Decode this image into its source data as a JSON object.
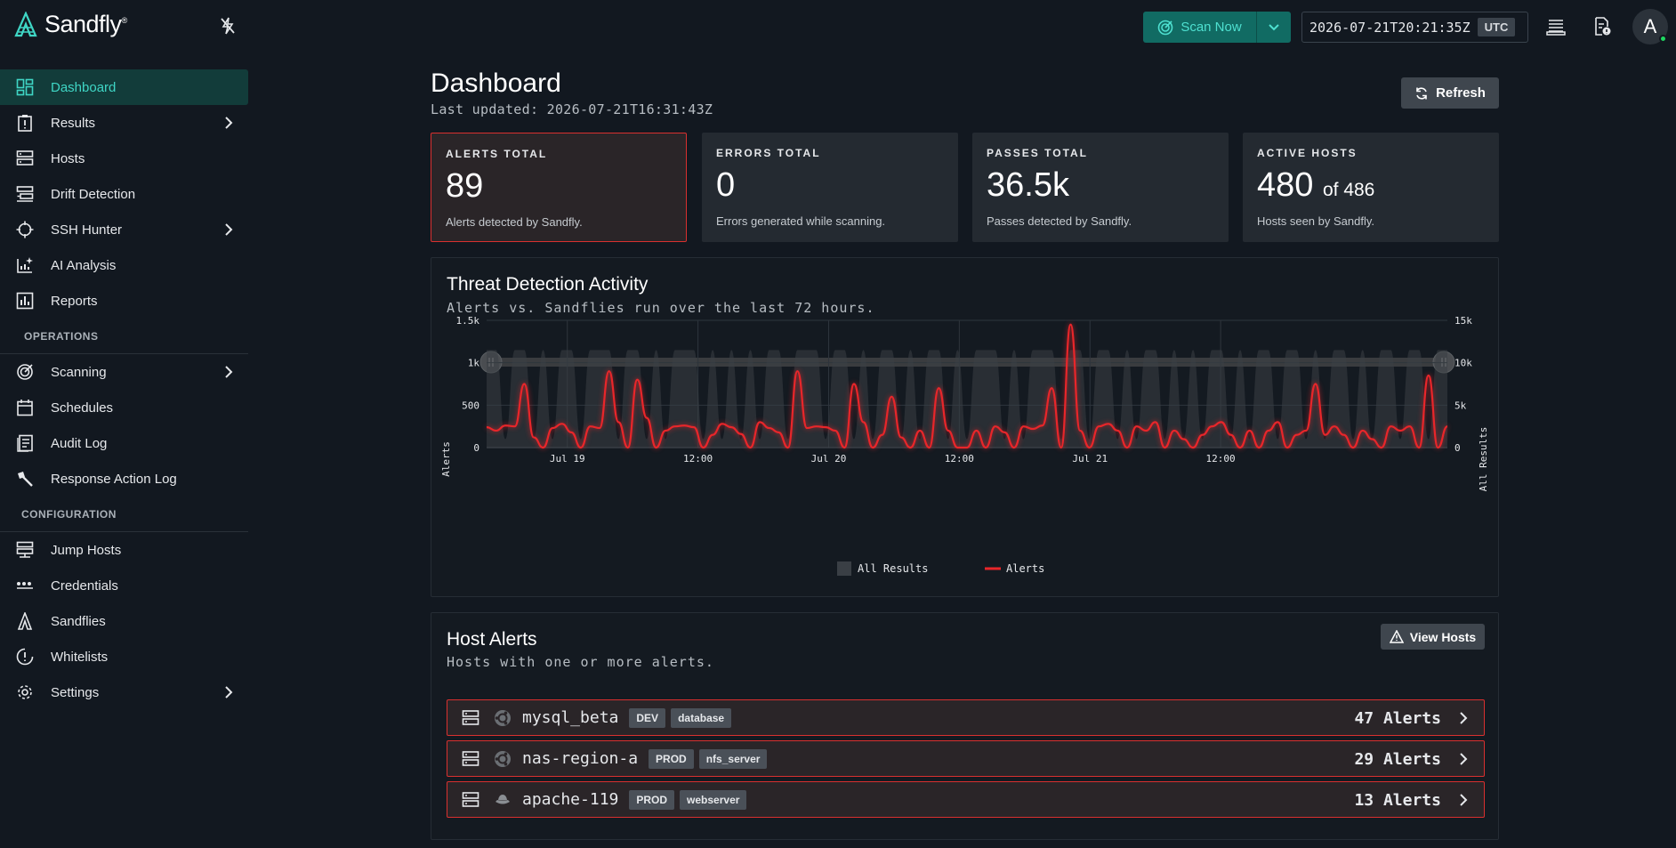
{
  "app": {
    "logo_text": "Sandfly",
    "logo_mark": "®"
  },
  "topbar": {
    "scan_label": "Scan Now",
    "timestamp": "2026-07-21T20:21:35Z",
    "timezone": "UTC",
    "avatar_letter": "A"
  },
  "sidebar": {
    "items": [
      {
        "label": "Dashboard",
        "icon": "dashboard-icon",
        "active": true
      },
      {
        "label": "Results",
        "icon": "clipboard-alert-icon",
        "chevron": true
      },
      {
        "label": "Hosts",
        "icon": "server-icon"
      },
      {
        "label": "Drift Detection",
        "icon": "drift-icon"
      },
      {
        "label": "SSH Hunter",
        "icon": "crosshair-icon",
        "chevron": true
      },
      {
        "label": "AI Analysis",
        "icon": "ai-chart-icon"
      },
      {
        "label": "Reports",
        "icon": "bar-report-icon"
      }
    ],
    "operations_label": "OPERATIONS",
    "operations": [
      {
        "label": "Scanning",
        "icon": "radar-icon",
        "chevron": true
      },
      {
        "label": "Schedules",
        "icon": "calendar-icon"
      },
      {
        "label": "Audit Log",
        "icon": "document-list-icon"
      },
      {
        "label": "Response Action Log",
        "icon": "gavel-icon"
      }
    ],
    "configuration_label": "CONFIGURATION",
    "configuration": [
      {
        "label": "Jump Hosts",
        "icon": "jump-server-icon"
      },
      {
        "label": "Credentials",
        "icon": "password-dots-icon"
      },
      {
        "label": "Sandflies",
        "icon": "sandfly-icon"
      },
      {
        "label": "Whitelists",
        "icon": "shield-exclaim-icon"
      },
      {
        "label": "Settings",
        "icon": "gear-icon",
        "chevron": true
      }
    ]
  },
  "dashboard": {
    "title": "Dashboard",
    "last_updated": "Last updated: 2026-07-21T16:31:43Z",
    "refresh_label": "Refresh"
  },
  "cards": [
    {
      "label": "ALERTS TOTAL",
      "value": "89",
      "suffix": "",
      "desc": "Alerts detected by Sandfly."
    },
    {
      "label": "ERRORS TOTAL",
      "value": "0",
      "suffix": "",
      "desc": "Errors generated while scanning."
    },
    {
      "label": "PASSES TOTAL",
      "value": "36.5k",
      "suffix": "",
      "desc": "Passes detected by Sandfly."
    },
    {
      "label": "ACTIVE HOSTS",
      "value": "480",
      "suffix": "of 486",
      "desc": "Hosts seen by Sandfly."
    }
  ],
  "activity": {
    "title": "Threat Detection Activity",
    "subtitle": "Alerts vs. Sandflies run over the last 72 hours."
  },
  "chart_data": {
    "type": "line",
    "ylabel": "Alerts",
    "y2label": "All Results",
    "ylim": [
      0,
      1500
    ],
    "y2lim": [
      0,
      15000
    ],
    "left_ticks": [
      "0",
      "500",
      "1k",
      "1.5k"
    ],
    "right_ticks": [
      "0",
      "5k",
      "10k",
      "15k"
    ],
    "x_ticks": [
      "Jul 19",
      "12:00",
      "Jul 20",
      "12:00",
      "Jul 21",
      "12:00"
    ],
    "legend": [
      "All Results",
      "Alerts"
    ],
    "series": [
      {
        "name": "Alerts",
        "color": "#e8262a",
        "values": [
          240,
          200,
          260,
          250,
          750,
          120,
          0,
          230,
          280,
          180,
          0,
          250,
          230,
          900,
          300,
          0,
          800,
          350,
          0,
          200,
          250,
          260,
          240,
          0,
          150,
          280,
          240,
          160,
          0,
          300,
          230,
          180,
          0,
          900,
          230,
          250,
          240,
          200,
          0,
          750,
          300,
          0,
          150,
          600,
          120,
          0,
          200,
          0,
          700,
          200,
          0,
          0,
          200,
          0,
          250,
          180,
          0,
          250,
          220,
          260,
          700,
          0,
          1450,
          200,
          0,
          250,
          280,
          200,
          0,
          250,
          200,
          300,
          0,
          200,
          100,
          0,
          150,
          250,
          300,
          150,
          0,
          200,
          0,
          200,
          300,
          0,
          150,
          200,
          750,
          150,
          250,
          150,
          0,
          200,
          100,
          0,
          250,
          200,
          250,
          0,
          850,
          0,
          250
        ]
      },
      {
        "name": "All Results",
        "color": "#3a3f45",
        "values": [
          11500,
          11500,
          1000,
          11500,
          11500,
          1000,
          11500,
          1000,
          11500,
          11500,
          1000,
          11500,
          11500,
          11500,
          1000,
          11500,
          11500,
          1000,
          11500,
          1000,
          11500,
          11500,
          11500,
          1000,
          11500,
          1000,
          11500,
          1000,
          11500,
          1000,
          11500,
          11500,
          1000,
          11500,
          11500,
          11500,
          1000,
          11500,
          11500,
          1000,
          11500,
          1000,
          11500,
          11500,
          1000,
          11500,
          1000,
          11500,
          11500,
          1000,
          11500,
          1000,
          11500,
          11500,
          11500,
          1000,
          11500,
          1000,
          11500,
          11500,
          11500,
          1000,
          11500,
          11500,
          1000,
          11500,
          11500,
          1000,
          11500,
          1000,
          11500,
          11500,
          1000,
          11500,
          1000,
          11500,
          1000,
          11500,
          11500,
          1000,
          11500,
          1000,
          11500,
          11500,
          1000,
          11500,
          11500,
          1000,
          11500,
          1000,
          11500,
          11500,
          1000,
          11500,
          1000,
          11500,
          11500,
          1000,
          11500,
          11500,
          1000,
          11500,
          11500
        ]
      }
    ]
  },
  "host_alerts": {
    "title": "Host Alerts",
    "subtitle": "Hosts with one or more alerts.",
    "view_label": "View Hosts",
    "rows": [
      {
        "name": "mysql_beta",
        "os": "ubuntu-icon",
        "tags": [
          "DEV",
          "database"
        ],
        "count": "47 Alerts"
      },
      {
        "name": "nas-region-a",
        "os": "ubuntu-icon",
        "tags": [
          "PROD",
          "nfs_server"
        ],
        "count": "29 Alerts"
      },
      {
        "name": "apache-119",
        "os": "redhat-icon",
        "tags": [
          "PROD",
          "webserver"
        ],
        "count": "13 Alerts"
      }
    ]
  }
}
